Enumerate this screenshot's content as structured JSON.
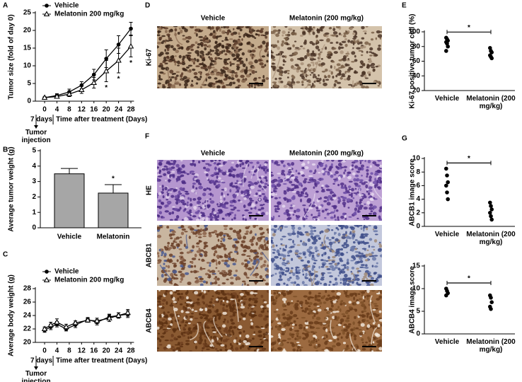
{
  "chart_data": [
    {
      "type": "line",
      "label": "A",
      "y_label": "Tumor size (fold of day 0)",
      "x": [
        0,
        4,
        8,
        12,
        16,
        20,
        24,
        28
      ],
      "series": [
        {
          "name": "Vehicle",
          "color": "#000000",
          "marker": "circle",
          "values": [
            1,
            1.6,
            2.6,
            4.5,
            7.5,
            12,
            16,
            20.5
          ],
          "errors": [
            0.2,
            0.5,
            0.8,
            1,
            1.5,
            2.5,
            2.5,
            1.8
          ]
        },
        {
          "name": "Melatonin 200 mg/kg",
          "color": "#000000",
          "marker": "triangle-open",
          "values": [
            1,
            1.3,
            2,
            3.2,
            5.2,
            8.5,
            11.5,
            15.5
          ],
          "errors": [
            0.2,
            0.4,
            0.7,
            1,
            1.5,
            3,
            3.5,
            3
          ]
        }
      ],
      "sig_label": "*",
      "xlim": [
        -3,
        29
      ],
      "xticks": [
        0,
        4,
        8,
        12,
        16,
        20,
        24,
        28
      ],
      "ylim": [
        0,
        25
      ],
      "yticks": [
        0,
        5,
        10,
        15,
        20,
        25
      ],
      "x_note": "7 days",
      "x_label": "Time after treatment (Days)",
      "event_label": "Tumor injection",
      "legend": "upper left"
    },
    {
      "type": "bar",
      "label": "B",
      "y_label": "Average tumor weight (g)",
      "categories": [
        "Vehicle",
        "Melatonin"
      ],
      "values": [
        3.5,
        2.25
      ],
      "errors": [
        0.35,
        0.55
      ],
      "color": "#a6a6a6",
      "sig_label": "*",
      "ylim": [
        0,
        5
      ],
      "yticks": [
        0,
        1,
        2,
        3,
        4,
        5
      ]
    },
    {
      "type": "line",
      "label": "C",
      "y_label": "Average body weight (g)",
      "x": [
        0,
        2,
        4,
        7,
        10,
        14,
        17,
        21,
        24,
        27
      ],
      "series": [
        {
          "name": "Vehicle",
          "color": "#000000",
          "marker": "circle",
          "values": [
            21.8,
            22.3,
            22.7,
            22.0,
            22.6,
            23.4,
            23.0,
            23.8,
            24.0,
            24.2
          ],
          "errors": [
            0.3,
            0.4,
            0.4,
            0.3,
            0.4,
            0.3,
            0.4,
            0.4,
            0.4,
            0.5
          ]
        },
        {
          "name": "Melatonin 200 mg/kg",
          "color": "#000000",
          "marker": "triangle-open",
          "values": [
            22.0,
            22.6,
            23.0,
            22.3,
            22.9,
            23.3,
            23.2,
            23.6,
            24.0,
            24.4
          ],
          "errors": [
            0.3,
            0.4,
            0.5,
            0.4,
            0.3,
            0.3,
            0.4,
            0.5,
            0.4,
            0.5
          ]
        }
      ],
      "xlim": [
        -3,
        29
      ],
      "xticks": [
        0,
        4,
        8,
        12,
        16,
        20,
        24,
        28
      ],
      "ylim": [
        20,
        28
      ],
      "yticks": [
        20,
        22,
        24,
        26,
        28
      ],
      "x_note": "7 days",
      "x_label": "Time after treatment (Days)",
      "event_label": "Tumor injection",
      "legend": "upper left"
    },
    {
      "type": "scatter",
      "label": "E",
      "y_label": "Ki-67 positive tumor cell (%)",
      "categories": [
        "Vehicle",
        "Melatonin (200 mg/kg)"
      ],
      "values": [
        [
          92,
          90,
          88,
          86,
          84,
          80,
          74
        ],
        [
          78,
          74,
          72,
          68,
          66,
          64
        ]
      ],
      "sig_label": "*",
      "ylim": [
        20,
        100
      ],
      "yticks": [
        20,
        40,
        60,
        80,
        100
      ]
    },
    {
      "type": "scatter",
      "label": "G",
      "y_label": "ABCB1 image score",
      "categories": [
        "Vehicle",
        "Melatonin (200 mg/kg)"
      ],
      "values": [
        [
          8.5,
          7.5,
          6.5,
          6,
          5,
          4
        ],
        [
          3.5,
          3,
          2.5,
          2,
          1.5,
          1
        ]
      ],
      "sig_label": "*",
      "ylim": [
        0,
        10
      ],
      "yticks": [
        0,
        2,
        4,
        6,
        8,
        10
      ]
    },
    {
      "type": "scatter",
      "y_label": "ABCB4 image score",
      "categories": [
        "Vehicle",
        "Melatonin (200 mg/kg)"
      ],
      "values": [
        [
          10,
          9.5,
          9,
          8.5
        ],
        [
          8.5,
          8,
          7,
          6,
          5.5
        ]
      ],
      "sig_label": "*",
      "ylim": [
        0,
        15
      ],
      "yticks": [
        0,
        5,
        10,
        15
      ]
    }
  ],
  "image_panels": [
    {
      "label": "D",
      "columns": [
        "Vehicle",
        "Melatonin (200 mg/kg)"
      ],
      "rows": [
        "Ki-67"
      ]
    },
    {
      "label": "F",
      "columns": [
        "Vehicle",
        "Melatonin (200 mg/kg)"
      ],
      "rows": [
        "HE",
        "ABCB1",
        "ABCB4"
      ]
    }
  ]
}
